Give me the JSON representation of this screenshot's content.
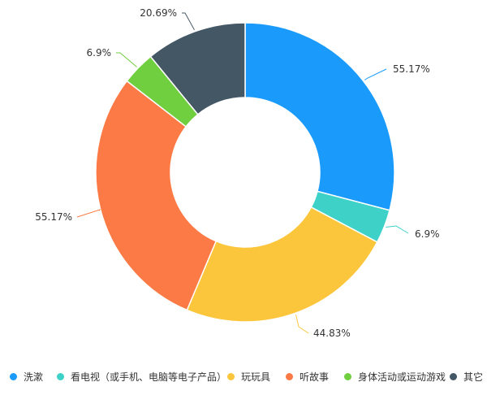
{
  "chart_data": {
    "type": "pie",
    "categories": [
      "洗漱",
      "看电视（或手机、电脑等电子产品）",
      "玩玩具",
      "听故事",
      "身体活动或运动游戏",
      "其它"
    ],
    "values": [
      55.17,
      6.9,
      44.83,
      55.17,
      6.9,
      20.69
    ],
    "data_labels": [
      "55.17%",
      "6.9%",
      "44.83%",
      "55.17%",
      "6.9%",
      "20.69%"
    ],
    "colors": [
      "#1a9bfc",
      "#3dd1c8",
      "#fcc63c",
      "#fc7a45",
      "#70cf3f",
      "#445765"
    ],
    "donut": true,
    "legend_position": "bottom"
  }
}
